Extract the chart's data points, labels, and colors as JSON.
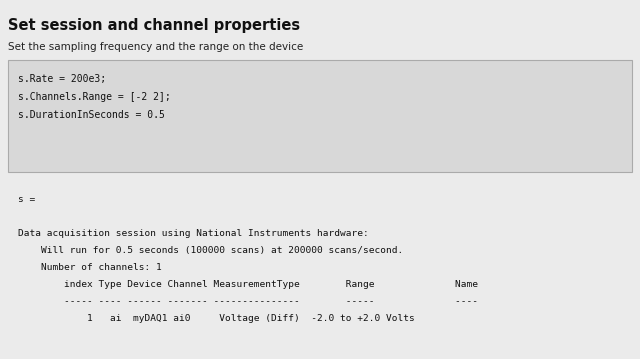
{
  "title": "Set session and channel properties",
  "subtitle": "Set the sampling frequency and the range on the device",
  "code_lines": [
    "s.Rate = 200e3;",
    "s.Channels.Range = [-2 2];",
    "s.DurationInSeconds = 0.5"
  ],
  "output_lines": [
    "s =",
    "",
    "Data acquisition session using National Instruments hardware:",
    "    Will run for 0.5 seconds (100000 scans) at 200000 scans/second.",
    "    Number of channels: 1",
    "        index Type Device Channel MeasurementType        Range              Name",
    "        ----- ---- ------ ------- ---------------        -----              ----",
    "            1   ai  myDAQ1 ai0     Voltage (Diff)  -2.0 to +2.0 Volts"
  ],
  "bg_color": "#ebebeb",
  "code_box_color": "#d8d8d8",
  "code_box_border": "#aaaaaa",
  "title_color": "#111111",
  "subtitle_color": "#222222",
  "code_text_color": "#111111",
  "output_text_color": "#111111",
  "title_fontsize": 10.5,
  "subtitle_fontsize": 7.5,
  "code_fontsize": 7.0,
  "output_fontsize": 6.8
}
